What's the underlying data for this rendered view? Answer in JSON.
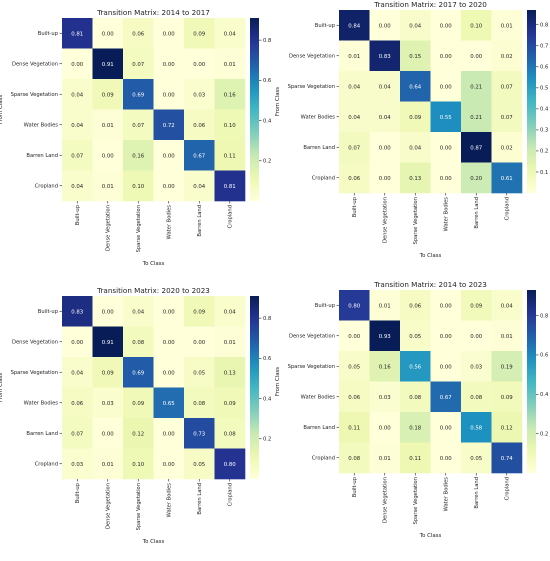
{
  "colormap": {
    "name": "YlGnBu",
    "stops": [
      "#ffffd9",
      "#edf8b1",
      "#c7e9b4",
      "#7fcdbb",
      "#41b6c4",
      "#1d91c0",
      "#225ea8",
      "#253494",
      "#081d58"
    ]
  },
  "chart_data": [
    {
      "type": "heatmap",
      "title": "Transition Matrix: 2014 to 2017",
      "xlabel": "To Class",
      "ylabel": "From Class",
      "categories": [
        "Built-up",
        "Dense Vegetation",
        "Sparse Vegetation",
        "Water Bodies",
        "Barren Land",
        "Cropland"
      ],
      "values": [
        [
          0.81,
          0.0,
          0.06,
          0.0,
          0.09,
          0.04
        ],
        [
          0.0,
          0.91,
          0.07,
          0.0,
          0.0,
          0.01
        ],
        [
          0.04,
          0.09,
          0.69,
          0.0,
          0.03,
          0.16
        ],
        [
          0.04,
          0.01,
          0.07,
          0.72,
          0.06,
          0.1
        ],
        [
          0.07,
          0.0,
          0.16,
          0.0,
          0.67,
          0.11
        ],
        [
          0.04,
          0.01,
          0.1,
          0.0,
          0.04,
          0.81
        ]
      ],
      "colorbar": {
        "ticks": [
          0.2,
          0.4,
          0.6,
          0.8
        ],
        "vmin": 0.0,
        "vmax": 0.91
      }
    },
    {
      "type": "heatmap",
      "title": "Transition Matrix: 2017 to 2020",
      "xlabel": "To Class",
      "ylabel": "From Class",
      "categories": [
        "Built-up",
        "Dense Vegetation",
        "Sparse Vegetation",
        "Water Bodies",
        "Barren Land",
        "Cropland"
      ],
      "values": [
        [
          0.84,
          0.0,
          0.04,
          0.0,
          0.1,
          0.01
        ],
        [
          0.01,
          0.83,
          0.15,
          0.0,
          0.0,
          0.02
        ],
        [
          0.04,
          0.04,
          0.64,
          0.0,
          0.21,
          0.07
        ],
        [
          0.04,
          0.04,
          0.09,
          0.55,
          0.21,
          0.07
        ],
        [
          0.07,
          0.0,
          0.04,
          0.0,
          0.87,
          0.02
        ],
        [
          0.06,
          0.0,
          0.13,
          0.0,
          0.2,
          0.61
        ]
      ],
      "colorbar": {
        "ticks": [
          0.1,
          0.2,
          0.3,
          0.4,
          0.5,
          0.6,
          0.7,
          0.8
        ],
        "vmin": 0.0,
        "vmax": 0.87
      }
    },
    {
      "type": "heatmap",
      "title": "Transition Matrix: 2020 to 2023",
      "xlabel": "To Class",
      "ylabel": "From Class",
      "categories": [
        "Built-up",
        "Dense Vegetation",
        "Sparse Vegetation",
        "Water Bodies",
        "Barren Land",
        "Cropland"
      ],
      "values": [
        [
          0.83,
          0.0,
          0.04,
          0.0,
          0.09,
          0.04
        ],
        [
          0.0,
          0.91,
          0.08,
          0.0,
          0.0,
          0.01
        ],
        [
          0.04,
          0.09,
          0.69,
          0.0,
          0.05,
          0.13
        ],
        [
          0.06,
          0.03,
          0.09,
          0.65,
          0.08,
          0.09
        ],
        [
          0.07,
          0.0,
          0.12,
          0.0,
          0.73,
          0.08
        ],
        [
          0.03,
          0.01,
          0.1,
          0.0,
          0.05,
          0.8
        ]
      ],
      "colorbar": {
        "ticks": [
          0.2,
          0.4,
          0.6,
          0.8
        ],
        "vmin": 0.0,
        "vmax": 0.91
      }
    },
    {
      "type": "heatmap",
      "title": "Transition Matrix: 2014 to 2023",
      "xlabel": "To Class",
      "ylabel": "From Class",
      "categories": [
        "Built-up",
        "Dense Vegetation",
        "Sparse Vegetation",
        "Water Bodies",
        "Barren Land",
        "Cropland"
      ],
      "values": [
        [
          0.8,
          0.01,
          0.06,
          0.0,
          0.09,
          0.04
        ],
        [
          0.0,
          0.93,
          0.05,
          0.0,
          0.0,
          0.01
        ],
        [
          0.05,
          0.16,
          0.56,
          0.0,
          0.03,
          0.19
        ],
        [
          0.06,
          0.03,
          0.08,
          0.67,
          0.08,
          0.09
        ],
        [
          0.11,
          0.0,
          0.18,
          0.0,
          0.58,
          0.12
        ],
        [
          0.08,
          0.01,
          0.11,
          0.0,
          0.05,
          0.74
        ]
      ],
      "colorbar": {
        "ticks": [
          0.2,
          0.4,
          0.6,
          0.8
        ],
        "vmin": 0.0,
        "vmax": 0.93
      }
    }
  ]
}
